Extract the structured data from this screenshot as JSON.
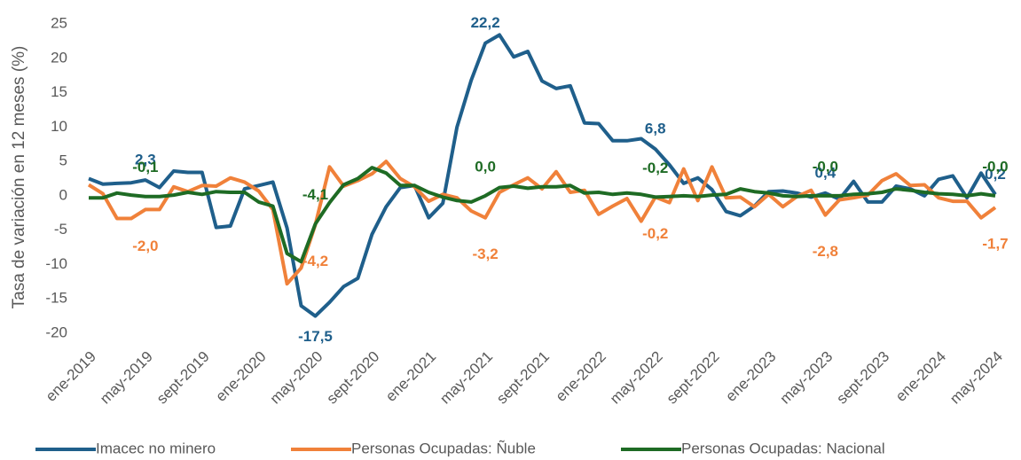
{
  "chart_data": {
    "type": "line",
    "y_label": "Tasa de variación en 12 meses (%)",
    "categories": [
      "ene-2019",
      null,
      null,
      null,
      "may-2019",
      null,
      null,
      null,
      "sept-2019",
      null,
      null,
      null,
      "ene-2020",
      null,
      null,
      null,
      "may-2020",
      null,
      null,
      null,
      "sept-2020",
      null,
      null,
      null,
      "ene-2021",
      null,
      null,
      null,
      "may-2021",
      null,
      null,
      null,
      "sept-2021",
      null,
      null,
      null,
      "ene-2022",
      null,
      null,
      null,
      "may-2022",
      null,
      null,
      null,
      "sept-2022",
      null,
      null,
      null,
      "ene-2023",
      null,
      null,
      null,
      "may-2023",
      null,
      null,
      null,
      "sept-2023",
      null,
      null,
      null,
      "ene-2024",
      null,
      null,
      null,
      "may-2024"
    ],
    "ylim": [
      -20,
      25
    ],
    "yticks": [
      -20,
      -15,
      -10,
      -5,
      0,
      5,
      10,
      15,
      20,
      25
    ],
    "series": [
      {
        "name": "Imacec no minero",
        "color": "#1f5f8b",
        "values": [
          2.5,
          1.7,
          1.8,
          1.9,
          2.3,
          1.2,
          3.6,
          3.4,
          3.4,
          -4.6,
          -4.4,
          1.0,
          1.5,
          2.0,
          -4.7,
          -16.0,
          -17.5,
          -15.5,
          -13.2,
          -12.0,
          -5.6,
          -1.6,
          1.2,
          1.5,
          -3.2,
          -1.1,
          10.0,
          16.8,
          22.2,
          23.4,
          20.2,
          21.0,
          16.7,
          15.6,
          16.0,
          10.6,
          10.5,
          8.0,
          8.0,
          8.3,
          6.8,
          4.5,
          1.8,
          2.6,
          0.9,
          -2.3,
          -2.9,
          -1.5,
          0.6,
          0.7,
          0.4,
          -0.2,
          0.4,
          -0.5,
          2.1,
          -0.9,
          -0.9,
          1.4,
          1.0,
          0.0,
          2.4,
          2.9,
          -0.3,
          3.3,
          0.2
        ],
        "value_labels": [
          null,
          null,
          null,
          null,
          "2,3",
          null,
          null,
          null,
          null,
          null,
          null,
          null,
          null,
          null,
          null,
          null,
          "-17,5",
          null,
          null,
          null,
          null,
          null,
          null,
          null,
          null,
          null,
          null,
          null,
          "22,2",
          null,
          null,
          null,
          null,
          null,
          null,
          null,
          null,
          null,
          null,
          null,
          "6,8",
          null,
          null,
          null,
          null,
          null,
          null,
          null,
          null,
          null,
          null,
          null,
          "0,4",
          null,
          null,
          null,
          null,
          null,
          null,
          null,
          null,
          null,
          null,
          null,
          "0,2"
        ]
      },
      {
        "name": "Personas Ocupadas: Ñuble",
        "color": "#f0813a",
        "values": [
          1.6,
          0.3,
          -3.3,
          -3.3,
          -2.0,
          -2.0,
          1.3,
          0.6,
          1.5,
          1.4,
          2.6,
          2.0,
          0.7,
          -2.0,
          -12.8,
          -10.5,
          -4.2,
          4.2,
          1.4,
          2.2,
          3.2,
          5.0,
          2.5,
          1.3,
          -0.8,
          0.2,
          -0.3,
          -2.2,
          -3.2,
          0.5,
          1.6,
          2.6,
          1.0,
          3.5,
          0.5,
          0.8,
          -2.7,
          -1.5,
          -0.4,
          -3.7,
          -0.2,
          -1.0,
          3.9,
          -0.7,
          4.2,
          -0.3,
          -0.2,
          -1.6,
          0.2,
          -1.6,
          -0.1,
          0.8,
          -2.8,
          -0.6,
          -0.3,
          0.1,
          2.2,
          3.2,
          1.5,
          1.6,
          -0.3,
          -0.8,
          -0.8,
          -3.2,
          -1.7
        ],
        "value_labels": [
          null,
          null,
          null,
          null,
          "-2,0",
          null,
          null,
          null,
          null,
          null,
          null,
          null,
          null,
          null,
          null,
          null,
          "-4,2",
          null,
          null,
          null,
          null,
          null,
          null,
          null,
          null,
          null,
          null,
          null,
          "-3,2",
          null,
          null,
          null,
          null,
          null,
          null,
          null,
          null,
          null,
          null,
          null,
          "-0,2",
          null,
          null,
          null,
          null,
          null,
          null,
          null,
          null,
          null,
          null,
          null,
          "-2,8",
          null,
          null,
          null,
          null,
          null,
          null,
          null,
          null,
          null,
          null,
          null,
          "-1,7"
        ]
      },
      {
        "name": "Personas Ocupadas: Nacional",
        "color": "#1e6b24",
        "values": [
          -0.3,
          -0.3,
          0.4,
          0.1,
          -0.1,
          -0.1,
          0.1,
          0.5,
          0.2,
          0.6,
          0.5,
          0.5,
          -0.9,
          -1.5,
          -8.4,
          -9.6,
          -4.1,
          -1.0,
          1.6,
          2.5,
          4.1,
          3.3,
          1.5,
          1.5,
          0.5,
          -0.2,
          -0.7,
          -0.9,
          0.0,
          1.2,
          1.4,
          1.1,
          1.3,
          1.3,
          1.5,
          0.4,
          0.5,
          0.2,
          0.4,
          0.2,
          -0.2,
          -0.1,
          0.0,
          -0.1,
          0.1,
          0.2,
          1.0,
          0.6,
          0.4,
          0.0,
          -0.1,
          0.0,
          -0.0,
          0.0,
          0.2,
          0.3,
          0.5,
          1.0,
          0.8,
          0.5,
          0.3,
          0.2,
          0.0,
          0.3,
          -0.0
        ],
        "value_labels": [
          null,
          null,
          null,
          null,
          "-0,1",
          null,
          null,
          null,
          null,
          null,
          null,
          null,
          null,
          null,
          null,
          null,
          "-4,1",
          null,
          null,
          null,
          null,
          null,
          null,
          null,
          null,
          null,
          null,
          null,
          "0,0",
          null,
          null,
          null,
          null,
          null,
          null,
          null,
          null,
          null,
          null,
          null,
          "-0,2",
          null,
          null,
          null,
          null,
          null,
          null,
          null,
          null,
          null,
          null,
          null,
          "-0,0",
          null,
          null,
          null,
          null,
          null,
          null,
          null,
          null,
          null,
          null,
          null,
          "-0,0"
        ]
      }
    ]
  }
}
